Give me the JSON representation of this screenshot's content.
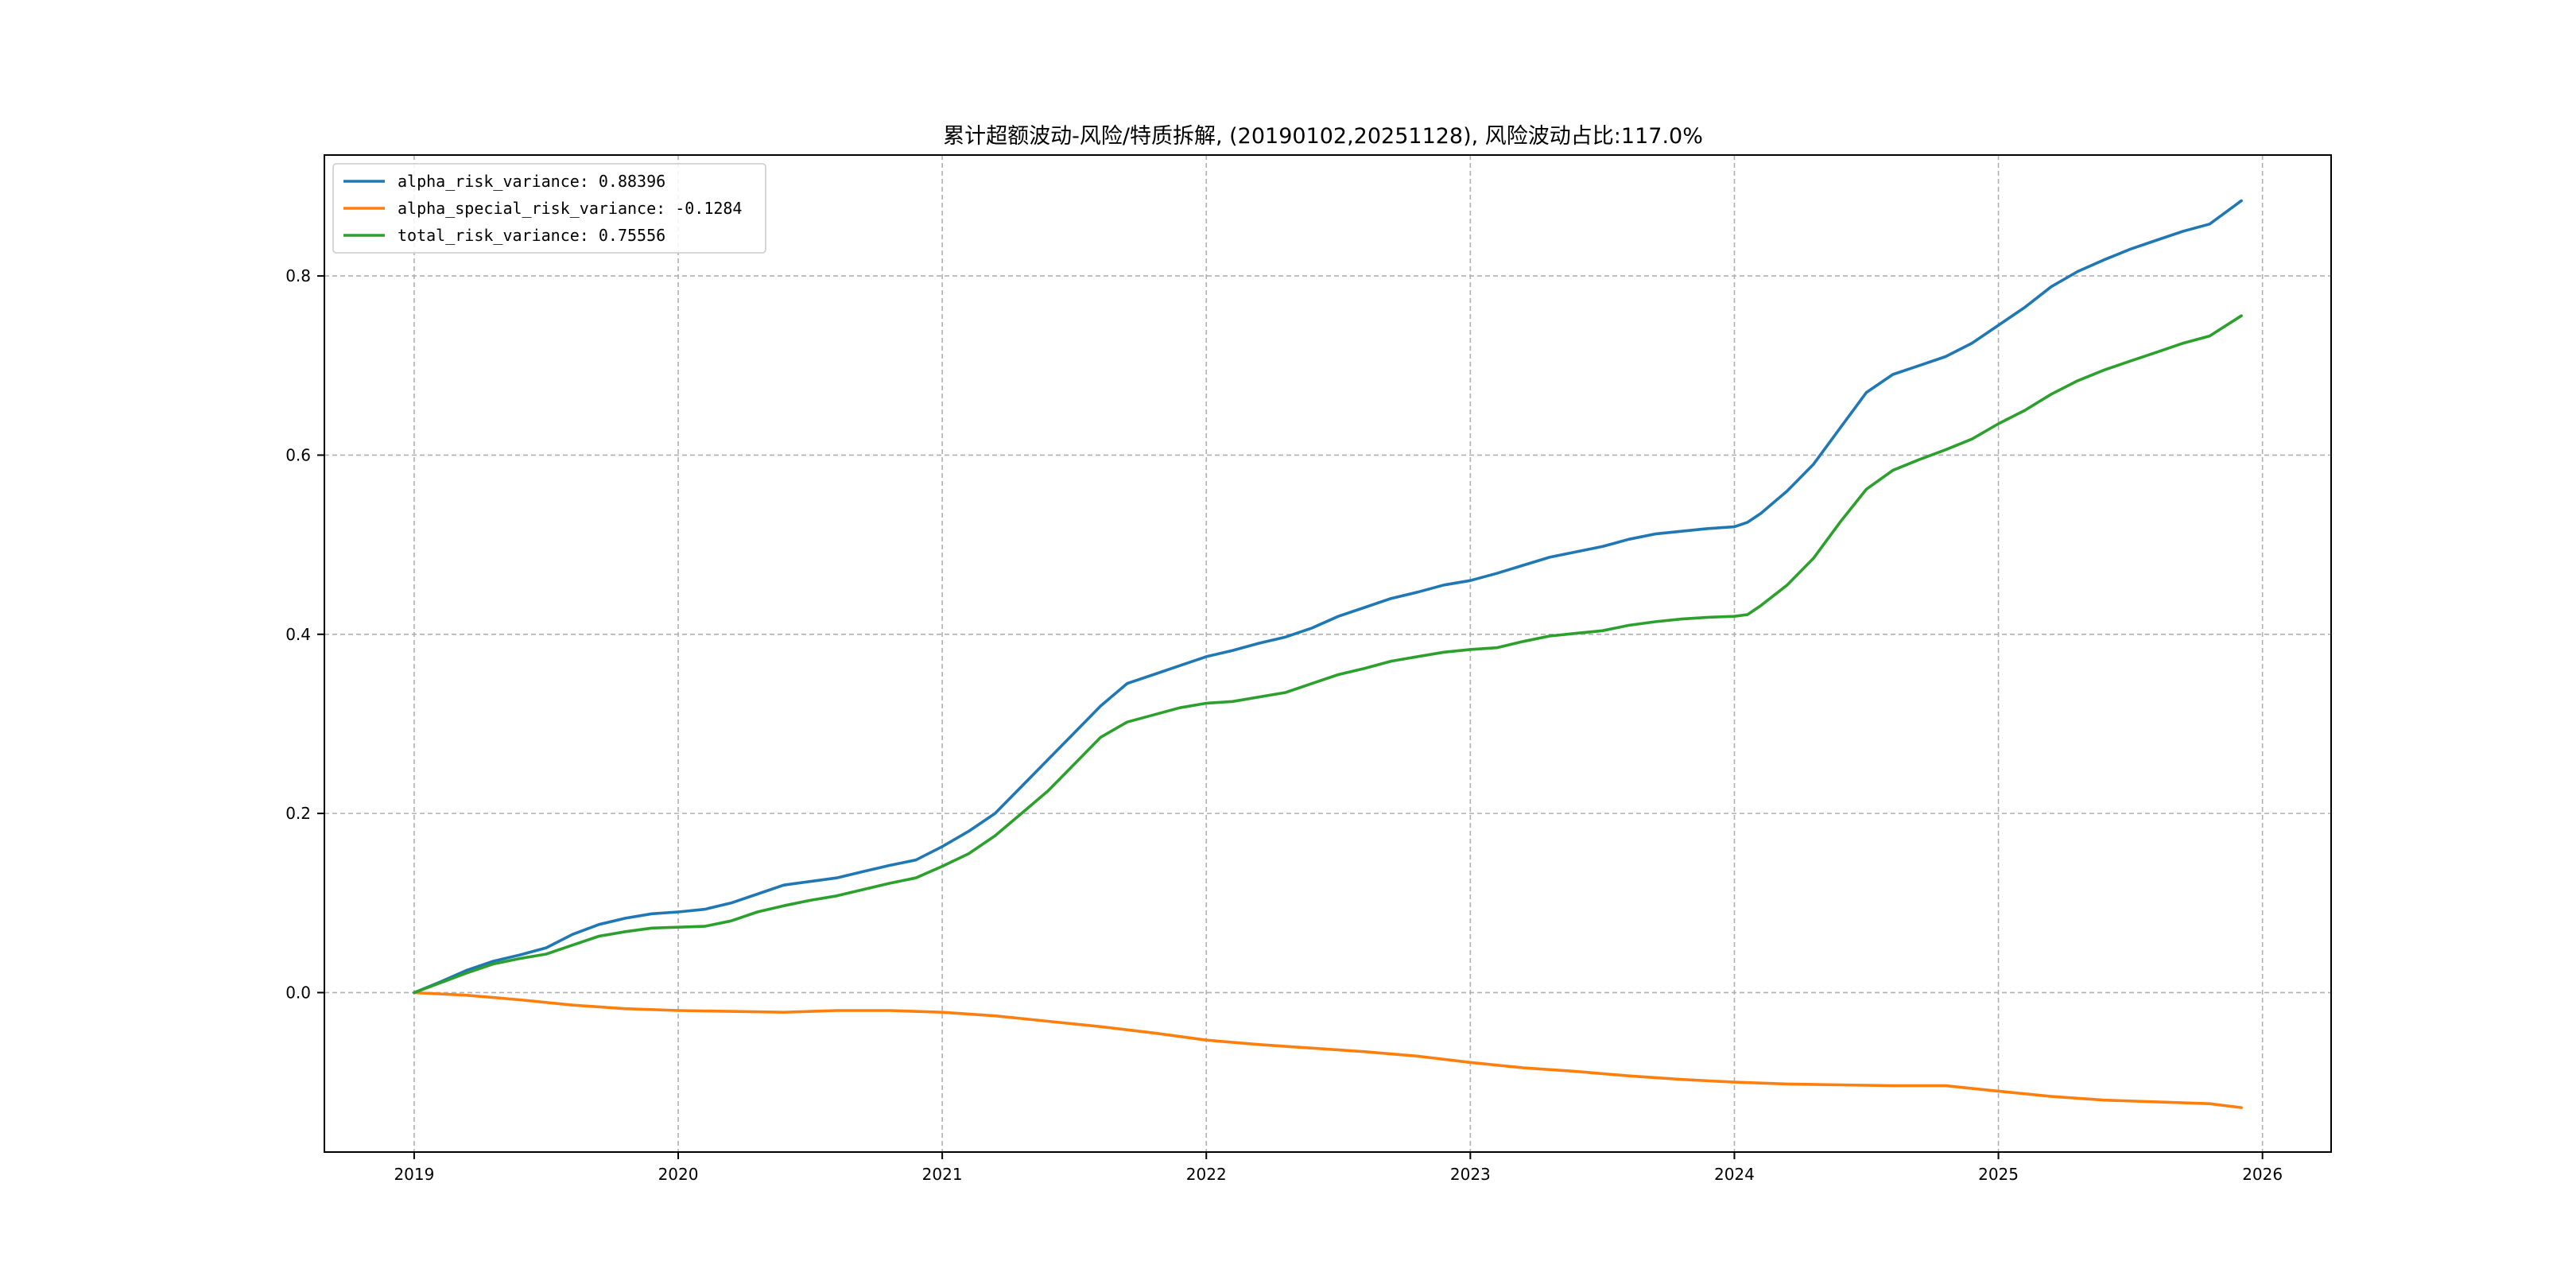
{
  "chart_data": {
    "type": "line",
    "title": "累计超额波动-风险/特质拆解, (20190102,20251128), 风险波动占比:117.0%",
    "xlabel": "",
    "ylabel": "",
    "xlim": [
      2018.66,
      2026.26
    ],
    "ylim": [
      -0.178,
      0.935
    ],
    "grid": true,
    "legend_position": "upper-left",
    "x_ticks": [
      {
        "value": 2019,
        "label": "2019"
      },
      {
        "value": 2020,
        "label": "2020"
      },
      {
        "value": 2021,
        "label": "2021"
      },
      {
        "value": 2022,
        "label": "2022"
      },
      {
        "value": 2023,
        "label": "2023"
      },
      {
        "value": 2024,
        "label": "2024"
      },
      {
        "value": 2025,
        "label": "2025"
      },
      {
        "value": 2026,
        "label": "2026"
      }
    ],
    "y_ticks": [
      {
        "value": 0.0,
        "label": "0.0"
      },
      {
        "value": 0.2,
        "label": "0.2"
      },
      {
        "value": 0.4,
        "label": "0.4"
      },
      {
        "value": 0.6,
        "label": "0.6"
      },
      {
        "value": 0.8,
        "label": "0.8"
      }
    ],
    "series": [
      {
        "name": "alpha_risk_variance: 0.88396",
        "color": "#1f77b4",
        "points": [
          [
            2019.0,
            0.0
          ],
          [
            2019.1,
            0.012
          ],
          [
            2019.2,
            0.025
          ],
          [
            2019.3,
            0.035
          ],
          [
            2019.4,
            0.042
          ],
          [
            2019.5,
            0.05
          ],
          [
            2019.6,
            0.065
          ],
          [
            2019.7,
            0.076
          ],
          [
            2019.8,
            0.083
          ],
          [
            2019.9,
            0.088
          ],
          [
            2020.0,
            0.09
          ],
          [
            2020.1,
            0.093
          ],
          [
            2020.2,
            0.1
          ],
          [
            2020.3,
            0.11
          ],
          [
            2020.4,
            0.12
          ],
          [
            2020.5,
            0.124
          ],
          [
            2020.6,
            0.128
          ],
          [
            2020.7,
            0.135
          ],
          [
            2020.8,
            0.142
          ],
          [
            2020.9,
            0.148
          ],
          [
            2021.0,
            0.163
          ],
          [
            2021.1,
            0.18
          ],
          [
            2021.2,
            0.2
          ],
          [
            2021.3,
            0.23
          ],
          [
            2021.4,
            0.26
          ],
          [
            2021.5,
            0.29
          ],
          [
            2021.6,
            0.32
          ],
          [
            2021.7,
            0.345
          ],
          [
            2021.8,
            0.355
          ],
          [
            2021.9,
            0.365
          ],
          [
            2022.0,
            0.375
          ],
          [
            2022.1,
            0.382
          ],
          [
            2022.2,
            0.39
          ],
          [
            2022.3,
            0.397
          ],
          [
            2022.4,
            0.407
          ],
          [
            2022.5,
            0.42
          ],
          [
            2022.6,
            0.43
          ],
          [
            2022.7,
            0.44
          ],
          [
            2022.8,
            0.447
          ],
          [
            2022.9,
            0.455
          ],
          [
            2023.0,
            0.46
          ],
          [
            2023.1,
            0.468
          ],
          [
            2023.2,
            0.477
          ],
          [
            2023.3,
            0.486
          ],
          [
            2023.4,
            0.492
          ],
          [
            2023.5,
            0.498
          ],
          [
            2023.6,
            0.506
          ],
          [
            2023.7,
            0.512
          ],
          [
            2023.8,
            0.515
          ],
          [
            2023.9,
            0.518
          ],
          [
            2024.0,
            0.52
          ],
          [
            2024.05,
            0.525
          ],
          [
            2024.1,
            0.535
          ],
          [
            2024.2,
            0.56
          ],
          [
            2024.3,
            0.59
          ],
          [
            2024.4,
            0.63
          ],
          [
            2024.5,
            0.67
          ],
          [
            2024.6,
            0.69
          ],
          [
            2024.7,
            0.7
          ],
          [
            2024.8,
            0.71
          ],
          [
            2024.9,
            0.725
          ],
          [
            2025.0,
            0.745
          ],
          [
            2025.1,
            0.765
          ],
          [
            2025.2,
            0.788
          ],
          [
            2025.3,
            0.805
          ],
          [
            2025.4,
            0.818
          ],
          [
            2025.5,
            0.83
          ],
          [
            2025.6,
            0.84
          ],
          [
            2025.7,
            0.85
          ],
          [
            2025.8,
            0.858
          ],
          [
            2025.92,
            0.884
          ]
        ]
      },
      {
        "name": "alpha_special_risk_variance: -0.1284",
        "color": "#ff7f0e",
        "points": [
          [
            2019.0,
            0.0
          ],
          [
            2019.2,
            -0.003
          ],
          [
            2019.4,
            -0.008
          ],
          [
            2019.6,
            -0.014
          ],
          [
            2019.8,
            -0.018
          ],
          [
            2020.0,
            -0.02
          ],
          [
            2020.2,
            -0.021
          ],
          [
            2020.4,
            -0.022
          ],
          [
            2020.6,
            -0.02
          ],
          [
            2020.8,
            -0.02
          ],
          [
            2021.0,
            -0.022
          ],
          [
            2021.2,
            -0.026
          ],
          [
            2021.4,
            -0.032
          ],
          [
            2021.6,
            -0.038
          ],
          [
            2021.8,
            -0.045
          ],
          [
            2022.0,
            -0.053
          ],
          [
            2022.2,
            -0.058
          ],
          [
            2022.4,
            -0.062
          ],
          [
            2022.6,
            -0.066
          ],
          [
            2022.8,
            -0.071
          ],
          [
            2023.0,
            -0.078
          ],
          [
            2023.2,
            -0.084
          ],
          [
            2023.4,
            -0.088
          ],
          [
            2023.6,
            -0.093
          ],
          [
            2023.8,
            -0.097
          ],
          [
            2024.0,
            -0.1
          ],
          [
            2024.2,
            -0.102
          ],
          [
            2024.4,
            -0.103
          ],
          [
            2024.6,
            -0.104
          ],
          [
            2024.8,
            -0.104
          ],
          [
            2025.0,
            -0.11
          ],
          [
            2025.2,
            -0.116
          ],
          [
            2025.4,
            -0.12
          ],
          [
            2025.6,
            -0.122
          ],
          [
            2025.8,
            -0.124
          ],
          [
            2025.92,
            -0.1284
          ]
        ]
      },
      {
        "name": "total_risk_variance: 0.75556",
        "color": "#2ca02c",
        "points": [
          [
            2019.0,
            0.0
          ],
          [
            2019.1,
            0.011
          ],
          [
            2019.2,
            0.022
          ],
          [
            2019.3,
            0.032
          ],
          [
            2019.4,
            0.038
          ],
          [
            2019.5,
            0.043
          ],
          [
            2019.6,
            0.053
          ],
          [
            2019.7,
            0.063
          ],
          [
            2019.8,
            0.068
          ],
          [
            2019.9,
            0.072
          ],
          [
            2020.0,
            0.073
          ],
          [
            2020.1,
            0.074
          ],
          [
            2020.2,
            0.08
          ],
          [
            2020.3,
            0.09
          ],
          [
            2020.4,
            0.097
          ],
          [
            2020.5,
            0.103
          ],
          [
            2020.6,
            0.108
          ],
          [
            2020.7,
            0.115
          ],
          [
            2020.8,
            0.122
          ],
          [
            2020.9,
            0.128
          ],
          [
            2021.0,
            0.141
          ],
          [
            2021.1,
            0.155
          ],
          [
            2021.2,
            0.175
          ],
          [
            2021.3,
            0.2
          ],
          [
            2021.4,
            0.225
          ],
          [
            2021.5,
            0.255
          ],
          [
            2021.6,
            0.285
          ],
          [
            2021.7,
            0.302
          ],
          [
            2021.8,
            0.31
          ],
          [
            2021.9,
            0.318
          ],
          [
            2022.0,
            0.323
          ],
          [
            2022.1,
            0.325
          ],
          [
            2022.2,
            0.33
          ],
          [
            2022.3,
            0.335
          ],
          [
            2022.4,
            0.345
          ],
          [
            2022.5,
            0.355
          ],
          [
            2022.6,
            0.362
          ],
          [
            2022.7,
            0.37
          ],
          [
            2022.8,
            0.375
          ],
          [
            2022.9,
            0.38
          ],
          [
            2023.0,
            0.383
          ],
          [
            2023.1,
            0.385
          ],
          [
            2023.2,
            0.392
          ],
          [
            2023.3,
            0.398
          ],
          [
            2023.4,
            0.401
          ],
          [
            2023.5,
            0.404
          ],
          [
            2023.6,
            0.41
          ],
          [
            2023.7,
            0.414
          ],
          [
            2023.8,
            0.417
          ],
          [
            2023.9,
            0.419
          ],
          [
            2024.0,
            0.42
          ],
          [
            2024.05,
            0.422
          ],
          [
            2024.1,
            0.432
          ],
          [
            2024.2,
            0.455
          ],
          [
            2024.3,
            0.485
          ],
          [
            2024.4,
            0.525
          ],
          [
            2024.5,
            0.562
          ],
          [
            2024.6,
            0.583
          ],
          [
            2024.7,
            0.595
          ],
          [
            2024.8,
            0.606
          ],
          [
            2024.9,
            0.618
          ],
          [
            2025.0,
            0.635
          ],
          [
            2025.1,
            0.65
          ],
          [
            2025.2,
            0.668
          ],
          [
            2025.3,
            0.683
          ],
          [
            2025.4,
            0.695
          ],
          [
            2025.5,
            0.705
          ],
          [
            2025.6,
            0.715
          ],
          [
            2025.7,
            0.725
          ],
          [
            2025.8,
            0.733
          ],
          [
            2025.92,
            0.75556
          ]
        ]
      }
    ]
  }
}
